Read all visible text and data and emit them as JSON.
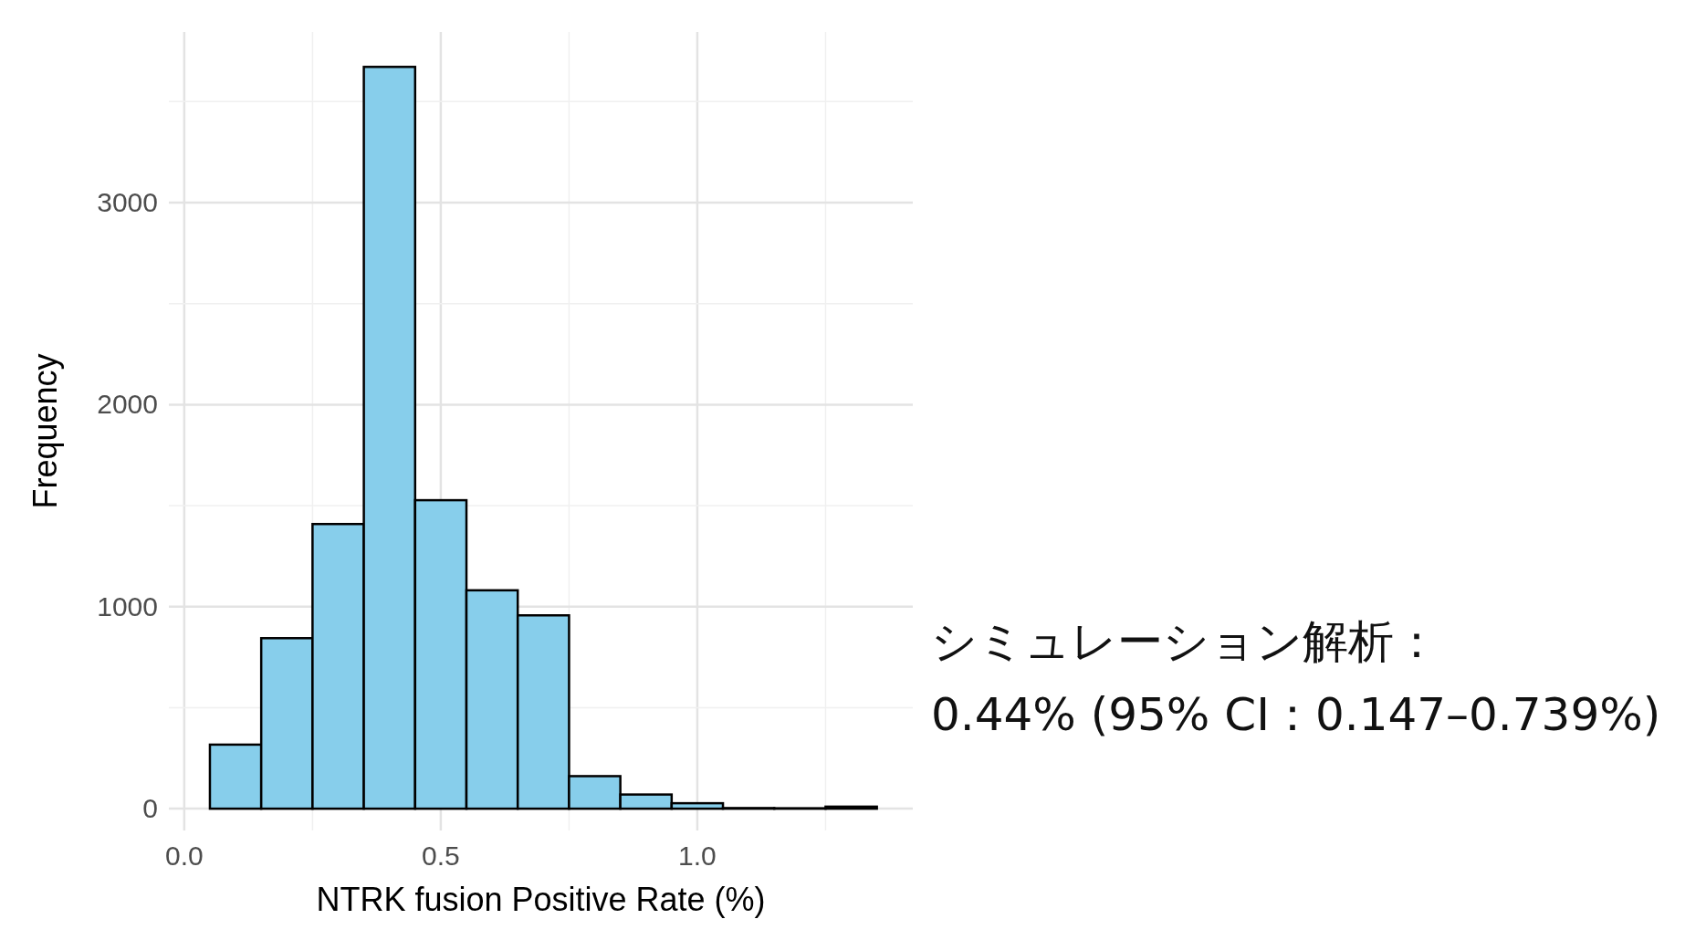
{
  "chart_data": {
    "type": "histogram",
    "xlabel": "NTRK fusion Positive Rate (%)",
    "ylabel": "Frequency",
    "bins": [
      0.05,
      0.15,
      0.25,
      0.35,
      0.45,
      0.55,
      0.65,
      0.75,
      0.85,
      0.95,
      1.05,
      1.15,
      1.25,
      1.35
    ],
    "values": [
      317,
      844,
      1409,
      3672,
      1527,
      1081,
      957,
      161,
      70,
      27,
      3,
      2,
      10
    ],
    "color": "#87ceeb",
    "xlim": [
      -0.03,
      1.42
    ],
    "ylim": [
      -108,
      3845
    ],
    "xticks": [
      {
        "value": 0,
        "label": "0.0"
      },
      {
        "value": 0.5,
        "label": "0.5"
      },
      {
        "value": 1,
        "label": "1.0"
      }
    ],
    "yticks": [
      0,
      1000,
      2000,
      3000
    ],
    "grid": true,
    "annotations": [
      "シミュレーション解析：",
      "0.44% (95% CI：0.147–0.739%)"
    ]
  }
}
